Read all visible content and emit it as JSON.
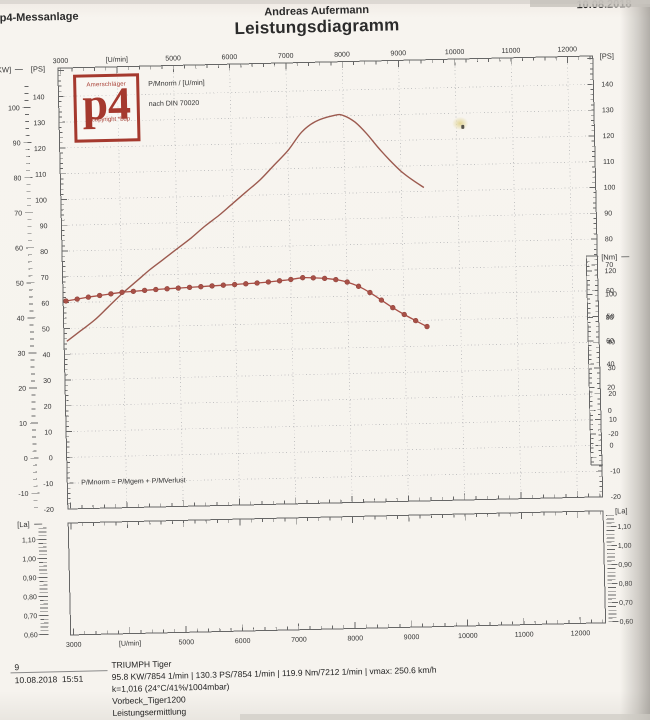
{
  "header": {
    "app": "p4-Messanlage",
    "operator": "Andreas Aufermann",
    "date": "10.08.2018",
    "title": "Leistungsdiagramm"
  },
  "logo": {
    "top": "Amerschläger",
    "main": "p4",
    "bottom": "copyright *bdp"
  },
  "colors": {
    "curve_power": "#9c5a4f",
    "curve_torque": "#a85047",
    "logo_red": "#a5392e",
    "grid": "#c3c3c3",
    "axis": "#666666"
  },
  "chart_data": [
    {
      "type": "line",
      "title": "Leistungsdiagramm",
      "x_axis": {
        "unit_label": "[U/min]",
        "ticks": [
          3000,
          4000,
          5000,
          6000,
          7000,
          8000,
          9000,
          10000,
          11000,
          12000
        ],
        "tick_labels": [
          "3000",
          "[U/min]",
          "5000",
          "6000",
          "7000",
          "8000",
          "9000",
          "10000",
          "11000",
          "12000"
        ],
        "range": [
          2950,
          12450
        ],
        "grid": true
      },
      "y_axis_kw": {
        "label": "[KW]",
        "ticks": [
          100,
          90,
          80,
          70,
          60,
          50,
          40,
          30,
          20,
          10,
          0,
          -10
        ]
      },
      "y_axis_ps": {
        "label": "[PS]",
        "ticks": [
          140,
          130,
          120,
          110,
          100,
          90,
          80,
          70,
          60,
          50,
          40,
          30,
          20,
          10,
          0,
          -10,
          -20
        ],
        "range": [
          -20,
          151
        ],
        "grid": true
      },
      "y_axis_nm": {
        "label": "[Nm]",
        "ticks": [
          120,
          100,
          80,
          60,
          40,
          20,
          0,
          -20
        ]
      },
      "annotations": [
        "P/Mnorm / [U/min]",
        "nach DIN 70020",
        "P/Mnorm = P/Mgem + P/MVerlust"
      ],
      "series": [
        {
          "name": "Leistung P/Mnorm",
          "unit": "PS",
          "axis": "ps",
          "marker": "none",
          "points": [
            [
              3000,
              45
            ],
            [
              3250,
              49
            ],
            [
              3500,
              53
            ],
            [
              3750,
              58
            ],
            [
              4000,
              63
            ],
            [
              4250,
              67.5
            ],
            [
              4500,
              72
            ],
            [
              4750,
              76
            ],
            [
              5000,
              80
            ],
            [
              5250,
              84
            ],
            [
              5500,
              88.5
            ],
            [
              5750,
              92.5
            ],
            [
              6000,
              97
            ],
            [
              6250,
              101.5
            ],
            [
              6500,
              106
            ],
            [
              6750,
              111.5
            ],
            [
              7000,
              117
            ],
            [
              7250,
              124
            ],
            [
              7500,
              128
            ],
            [
              7854,
              130.3
            ],
            [
              8000,
              130.1
            ],
            [
              8200,
              127.5
            ],
            [
              8400,
              123
            ],
            [
              8600,
              117.5
            ],
            [
              8800,
              112.5
            ],
            [
              9000,
              108
            ],
            [
              9200,
              104.5
            ],
            [
              9400,
              101.5
            ]
          ]
        },
        {
          "name": "Drehmoment",
          "unit": "Nm",
          "axis": "nm",
          "marker": "circle",
          "points": [
            [
              3000,
              104.5
            ],
            [
              3200,
              105.9
            ],
            [
              3400,
              107.4
            ],
            [
              3600,
              108.6
            ],
            [
              3800,
              109.8
            ],
            [
              4000,
              110.9
            ],
            [
              4200,
              111.5
            ],
            [
              4400,
              112.1
            ],
            [
              4600,
              112.6
            ],
            [
              4800,
              113.0
            ],
            [
              5000,
              113.4
            ],
            [
              5200,
              113.8
            ],
            [
              5400,
              114.2
            ],
            [
              5600,
              114.6
            ],
            [
              5800,
              115.0
            ],
            [
              6000,
              115.4
            ],
            [
              6200,
              115.8
            ],
            [
              6400,
              116.2
            ],
            [
              6600,
              116.9
            ],
            [
              6800,
              117.7
            ],
            [
              7000,
              118.6
            ],
            [
              7212,
              119.9
            ],
            [
              7400,
              119.6
            ],
            [
              7600,
              118.9
            ],
            [
              7800,
              117.6
            ],
            [
              8000,
              115.3
            ],
            [
              8200,
              111.4
            ],
            [
              8400,
              105.8
            ],
            [
              8600,
              99.1
            ],
            [
              8800,
              92.4
            ],
            [
              9000,
              86.3
            ],
            [
              9200,
              80.8
            ],
            [
              9400,
              75.5
            ]
          ]
        }
      ]
    },
    {
      "type": "line",
      "y_axis": {
        "label": "[La]",
        "ticks": [
          1.1,
          1.0,
          0.9,
          0.8,
          0.7,
          0.6
        ],
        "tick_labels": [
          "1,10",
          "1,00",
          "0,90",
          "0,80",
          "0,70",
          "0,60"
        ],
        "range": [
          0.595,
          1.175
        ]
      },
      "x_axis": {
        "unit_label": "[U/min]",
        "ticks": [
          3000,
          4000,
          5000,
          6000,
          7000,
          8000,
          9000,
          10000,
          11000,
          12000
        ],
        "tick_labels": [
          "3000",
          "[U/min]",
          "5000",
          "6000",
          "7000",
          "8000",
          "9000",
          "10000",
          "11000",
          "12000"
        ]
      },
      "series": []
    }
  ],
  "footer": {
    "page": "9",
    "datetime": "10.08.2018  15:51",
    "vehicle": "TRIUMPH Tiger",
    "results": "95.8 KW/7854 1/min  |  130.3 PS/7854 1/min  |  119.9 Nm/7212 1/min | vmax: 250.6 km/h",
    "correction": "k=1,016 (24°C/41%/1004mbar)",
    "file": "Vorbeck_Tiger1200",
    "mode": "Leistungsermittlung"
  }
}
